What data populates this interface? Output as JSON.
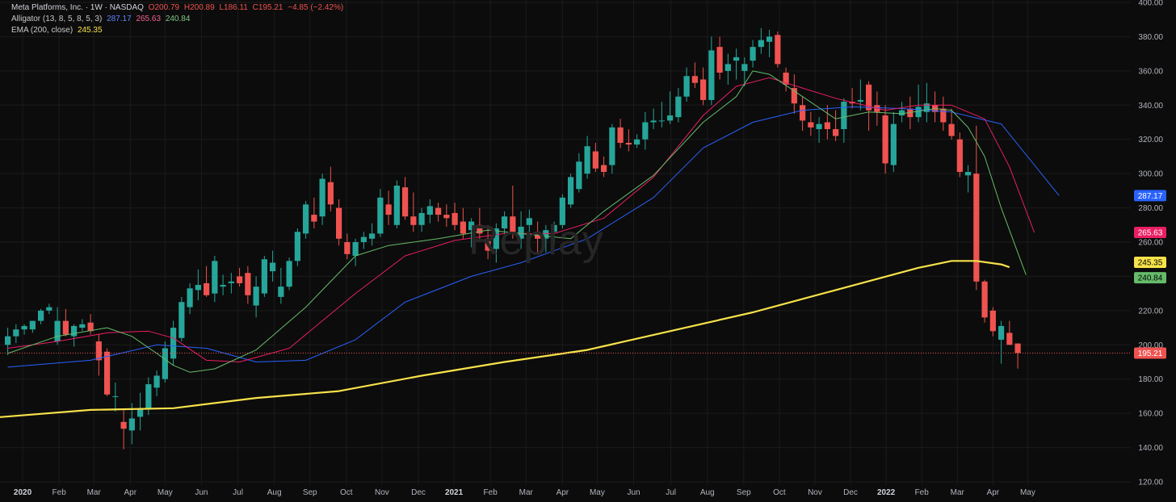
{
  "legend": {
    "symbol": "Meta Platforms, Inc. · 1W · NASDAQ",
    "open": "O200.79",
    "high": "H200.89",
    "low": "L186.11",
    "close": "C195.21",
    "change": "−4.85 (−2.42%)",
    "alligator_label": "Alligator (13, 8, 5, 8, 5, 3)",
    "alligator_jaw": "287.17",
    "alligator_teeth": "265.63",
    "alligator_lips": "240.84",
    "ema_label": "EMA (200, close)",
    "ema_value": "245.35"
  },
  "watermark": "Replay",
  "colors": {
    "background": "#0c0c0c",
    "grid": "#1b1b1b",
    "up": "#26a69a",
    "down": "#ef5350",
    "jaw": "#2962ff",
    "teeth": "#e91e63",
    "lips": "#66bb6a",
    "ema": "#f7e24a",
    "text": "#b2b5be",
    "last_price": "#ef5350"
  },
  "chart_data": {
    "type": "candlestick",
    "title": "Meta Platforms, Inc. · 1W · NASDAQ",
    "ylim": [
      120,
      400
    ],
    "y_ticks": [
      "120.00",
      "140.00",
      "160.00",
      "180.00",
      "200.00",
      "220.00",
      "240.00",
      "260.00",
      "280.00",
      "300.00",
      "320.00",
      "340.00",
      "360.00",
      "380.00",
      "400.00"
    ],
    "x_ticks": [
      "2020",
      "Feb",
      "Mar",
      "Apr",
      "May",
      "Jun",
      "Jul",
      "Aug",
      "Sep",
      "Oct",
      "Nov",
      "Dec",
      "2021",
      "Feb",
      "Mar",
      "Apr",
      "May",
      "Jun",
      "Jul",
      "Aug",
      "Sep",
      "Oct",
      "Nov",
      "Dec",
      "2022",
      "Feb",
      "Mar",
      "Apr",
      "May"
    ],
    "candles": [
      [
        200.0,
        210.0,
        194.0,
        205.0
      ],
      [
        205.0,
        212.0,
        201.0,
        209.0
      ],
      [
        209.0,
        212.0,
        206.0,
        211.0
      ],
      [
        209.0,
        214.0,
        207.0,
        214.0
      ],
      [
        214.0,
        221.0,
        212.0,
        220.0
      ],
      [
        220.0,
        224.0,
        218.0,
        222.0
      ],
      [
        202.0,
        222.0,
        200.0,
        214.0
      ],
      [
        214.0,
        221.0,
        205.0,
        206.0
      ],
      [
        205.0,
        212.0,
        199.0,
        211.0
      ],
      [
        210.0,
        215.0,
        208.0,
        212.0
      ],
      [
        213.0,
        218.0,
        206.0,
        208.0
      ],
      [
        202.0,
        206.0,
        182.0,
        191.0
      ],
      [
        196.0,
        198.0,
        170.0,
        171.0
      ],
      [
        170.0,
        178.0,
        161.0,
        170.0
      ],
      [
        155.0,
        162.0,
        139.0,
        151.0
      ],
      [
        150.0,
        166.0,
        142.0,
        157.0
      ],
      [
        158.0,
        172.0,
        150.0,
        163.0
      ],
      [
        163.0,
        181.0,
        159.0,
        177.0
      ],
      [
        175.0,
        185.0,
        170.0,
        182.0
      ],
      [
        180.0,
        202.0,
        178.0,
        198.0
      ],
      [
        192.0,
        214.0,
        188.0,
        210.0
      ],
      [
        204.0,
        228.0,
        202.0,
        225.0
      ],
      [
        222.0,
        236.0,
        218.0,
        233.0
      ],
      [
        232.0,
        244.0,
        226.0,
        235.0
      ],
      [
        236.0,
        246.0,
        228.0,
        229.0
      ],
      [
        230.0,
        252.0,
        225.0,
        249.0
      ],
      [
        234.0,
        241.0,
        229.0,
        235.0
      ],
      [
        236.0,
        242.0,
        230.0,
        237.0
      ],
      [
        240.0,
        245.0,
        234.0,
        236.0
      ],
      [
        242.0,
        246.0,
        224.0,
        229.0
      ],
      [
        223.0,
        240.0,
        216.0,
        234.0
      ],
      [
        230.0,
        252.0,
        228.0,
        250.0
      ],
      [
        243.0,
        255.0,
        237.0,
        248.0
      ],
      [
        228.0,
        245.0,
        224.0,
        234.0
      ],
      [
        234.0,
        251.0,
        232.0,
        249.0
      ],
      [
        249.0,
        268.0,
        246.0,
        266.0
      ],
      [
        265.0,
        284.0,
        262.0,
        282.0
      ],
      [
        276.0,
        286.0,
        268.0,
        272.0
      ],
      [
        275.0,
        300.0,
        270.0,
        297.0
      ],
      [
        295.0,
        304.0,
        278.0,
        282.0
      ],
      [
        280.0,
        285.0,
        258.0,
        262.0
      ],
      [
        260.0,
        265.0,
        250.0,
        253.0
      ],
      [
        252.0,
        262.0,
        246.0,
        260.0
      ],
      [
        260.0,
        266.0,
        256.0,
        263.0
      ],
      [
        262.0,
        271.0,
        258.0,
        265.0
      ],
      [
        265.0,
        291.0,
        263.0,
        286.0
      ],
      [
        282.0,
        290.0,
        270.0,
        276.0
      ],
      [
        270.0,
        296.0,
        268.0,
        293.0
      ],
      [
        292.0,
        298.0,
        273.0,
        275.0
      ],
      [
        275.0,
        289.0,
        266.0,
        270.0
      ],
      [
        270.0,
        280.0,
        266.0,
        277.0
      ],
      [
        276.0,
        285.0,
        271.0,
        281.0
      ],
      [
        280.0,
        283.0,
        272.0,
        276.0
      ],
      [
        276.0,
        282.0,
        269.0,
        274.0
      ],
      [
        277.0,
        283.0,
        267.0,
        270.0
      ],
      [
        272.0,
        280.0,
        262.0,
        265.0
      ],
      [
        267.0,
        274.0,
        257.0,
        272.0
      ],
      [
        270.0,
        280.0,
        260.0,
        265.0
      ],
      [
        262.0,
        270.0,
        250.0,
        255.0
      ],
      [
        256.0,
        271.0,
        248.0,
        268.0
      ],
      [
        268.0,
        278.0,
        264.0,
        275.0
      ],
      [
        275.0,
        293.0,
        262.0,
        266.0
      ],
      [
        262.0,
        278.0,
        256.0,
        269.0
      ],
      [
        270.0,
        279.0,
        266.0,
        274.0
      ],
      [
        266.0,
        272.0,
        254.0,
        262.0
      ],
      [
        262.0,
        270.0,
        254.0,
        267.0
      ],
      [
        266.0,
        272.0,
        258.0,
        270.0
      ],
      [
        270.0,
        288.0,
        268.0,
        286.0
      ],
      [
        282.0,
        300.0,
        280.0,
        298.0
      ],
      [
        291.0,
        312.0,
        289.0,
        307.0
      ],
      [
        300.0,
        322.0,
        297.0,
        316.0
      ],
      [
        313.0,
        318.0,
        301.0,
        303.0
      ],
      [
        305.0,
        310.0,
        298.0,
        301.0
      ],
      [
        305.0,
        329.0,
        300.0,
        327.0
      ],
      [
        327.0,
        332.0,
        315.0,
        318.0
      ],
      [
        318.0,
        326.0,
        313.0,
        317.0
      ],
      [
        317.0,
        323.0,
        315.0,
        320.0
      ],
      [
        320.0,
        336.0,
        314.0,
        330.0
      ],
      [
        330.0,
        338.0,
        326.0,
        331.0
      ],
      [
        331.0,
        342.0,
        327.0,
        331.0
      ],
      [
        331.0,
        348.0,
        329.0,
        334.0
      ],
      [
        333.0,
        350.0,
        330.0,
        345.0
      ],
      [
        345.0,
        362.0,
        342.0,
        357.0
      ],
      [
        357.0,
        365.0,
        350.0,
        353.0
      ],
      [
        355.0,
        362.0,
        340.0,
        343.0
      ],
      [
        343.0,
        380.0,
        340.0,
        372.0
      ],
      [
        374.0,
        380.0,
        355.0,
        359.0
      ],
      [
        360.0,
        370.0,
        352.0,
        364.0
      ],
      [
        366.0,
        373.0,
        355.0,
        368.0
      ],
      [
        360.0,
        368.0,
        351.0,
        364.0
      ],
      [
        366.0,
        378.0,
        362.0,
        374.0
      ],
      [
        374.0,
        385.0,
        370.0,
        378.0
      ],
      [
        377.0,
        384.0,
        368.0,
        380.0
      ],
      [
        381.0,
        383.0,
        362.0,
        364.0
      ],
      [
        359.0,
        362.0,
        348.0,
        352.0
      ],
      [
        350.0,
        358.0,
        335.0,
        341.0
      ],
      [
        340.0,
        345.0,
        325.0,
        331.0
      ],
      [
        330.0,
        336.0,
        322.0,
        327.0
      ],
      [
        326.0,
        333.0,
        318.0,
        329.0
      ],
      [
        330.0,
        340.0,
        320.0,
        326.0
      ],
      [
        326.0,
        337.0,
        319.0,
        322.0
      ],
      [
        326.0,
        344.0,
        318.0,
        342.0
      ],
      [
        342.0,
        350.0,
        338.0,
        341.0
      ],
      [
        342.0,
        355.0,
        337.0,
        343.0
      ],
      [
        352.0,
        354.0,
        325.0,
        337.0
      ],
      [
        340.0,
        348.0,
        328.0,
        336.0
      ],
      [
        334.0,
        340.0,
        300.0,
        306.0
      ],
      [
        305.0,
        336.0,
        301.0,
        329.0
      ],
      [
        334.0,
        342.0,
        330.0,
        337.0
      ],
      [
        338.0,
        345.0,
        326.0,
        333.0
      ],
      [
        333.0,
        352.0,
        330.0,
        339.0
      ],
      [
        336.0,
        353.0,
        330.0,
        341.0
      ],
      [
        340.0,
        348.0,
        330.0,
        336.0
      ],
      [
        338.0,
        345.0,
        325.0,
        330.0
      ],
      [
        329.0,
        338.0,
        320.0,
        322.0
      ],
      [
        320.0,
        324.0,
        298.0,
        301.0
      ],
      [
        299.0,
        305.0,
        289.0,
        301.0
      ],
      [
        300.0,
        328.0,
        232.0,
        237.0
      ],
      [
        237.0,
        238.0,
        213.0,
        216.0
      ],
      [
        220.0,
        222.0,
        205.0,
        208.0
      ],
      [
        203.0,
        214.0,
        189.0,
        211.0
      ],
      [
        207.0,
        214.0,
        200.0,
        200.0
      ],
      [
        200.79,
        200.89,
        186.11,
        195.21
      ]
    ],
    "series": [
      {
        "name": "Alligator Jaw (13, 8)",
        "last": 287.17,
        "values": [
          [
            0,
            187
          ],
          [
            10,
            191
          ],
          [
            18,
            200
          ],
          [
            24,
            198
          ],
          [
            30,
            190
          ],
          [
            36,
            191
          ],
          [
            42,
            203
          ],
          [
            48,
            225
          ],
          [
            56,
            240
          ],
          [
            62,
            248
          ],
          [
            70,
            262
          ],
          [
            78,
            286
          ],
          [
            84,
            315
          ],
          [
            90,
            330
          ],
          [
            96,
            337
          ],
          [
            102,
            339
          ],
          [
            108,
            338
          ],
          [
            114,
            336
          ],
          [
            120,
            329
          ],
          [
            127,
            287.17
          ]
        ]
      },
      {
        "name": "Alligator Teeth (8, 5)",
        "last": 265.63,
        "values": [
          [
            0,
            198
          ],
          [
            6,
            202
          ],
          [
            12,
            207
          ],
          [
            17,
            208
          ],
          [
            20,
            204
          ],
          [
            24,
            191
          ],
          [
            28,
            190
          ],
          [
            34,
            198
          ],
          [
            42,
            230
          ],
          [
            48,
            252
          ],
          [
            54,
            261
          ],
          [
            60,
            265
          ],
          [
            66,
            265
          ],
          [
            72,
            274
          ],
          [
            78,
            298
          ],
          [
            84,
            334
          ],
          [
            88,
            351
          ],
          [
            92,
            356
          ],
          [
            96,
            350
          ],
          [
            100,
            344
          ],
          [
            106,
            337
          ],
          [
            110,
            340
          ],
          [
            114,
            340
          ],
          [
            118,
            332
          ],
          [
            121,
            304
          ],
          [
            124,
            265.63
          ]
        ]
      },
      {
        "name": "Alligator Lips (5, 3)",
        "last": 240.84,
        "values": [
          [
            0,
            195
          ],
          [
            6,
            205
          ],
          [
            12,
            210
          ],
          [
            15,
            205
          ],
          [
            18,
            195
          ],
          [
            20,
            188
          ],
          [
            22,
            184
          ],
          [
            25,
            186
          ],
          [
            30,
            197
          ],
          [
            36,
            222
          ],
          [
            42,
            252
          ],
          [
            46,
            258
          ],
          [
            52,
            262
          ],
          [
            58,
            267
          ],
          [
            64,
            264
          ],
          [
            68,
            262
          ],
          [
            72,
            278
          ],
          [
            78,
            299
          ],
          [
            84,
            330
          ],
          [
            88,
            345
          ],
          [
            90,
            360
          ],
          [
            92,
            358
          ],
          [
            96,
            345
          ],
          [
            100,
            332
          ],
          [
            104,
            336
          ],
          [
            108,
            335
          ],
          [
            112,
            338
          ],
          [
            114,
            337
          ],
          [
            116,
            327
          ],
          [
            118,
            310
          ],
          [
            120,
            280
          ],
          [
            123,
            240.84
          ]
        ]
      },
      {
        "name": "EMA (200, close)",
        "last": 245.35,
        "values": [
          [
            -3,
            157
          ],
          [
            10,
            162
          ],
          [
            20,
            163
          ],
          [
            30,
            169
          ],
          [
            40,
            173
          ],
          [
            50,
            182
          ],
          [
            60,
            190
          ],
          [
            70,
            197
          ],
          [
            80,
            208
          ],
          [
            90,
            219
          ],
          [
            100,
            232
          ],
          [
            110,
            245
          ],
          [
            114,
            249
          ],
          [
            117,
            249
          ],
          [
            120,
            247
          ],
          [
            121,
            245.35
          ]
        ]
      }
    ],
    "last_price": 195.21,
    "price_labels": [
      "287.17",
      "265.63",
      "245.35",
      "240.84",
      "195.21"
    ]
  }
}
